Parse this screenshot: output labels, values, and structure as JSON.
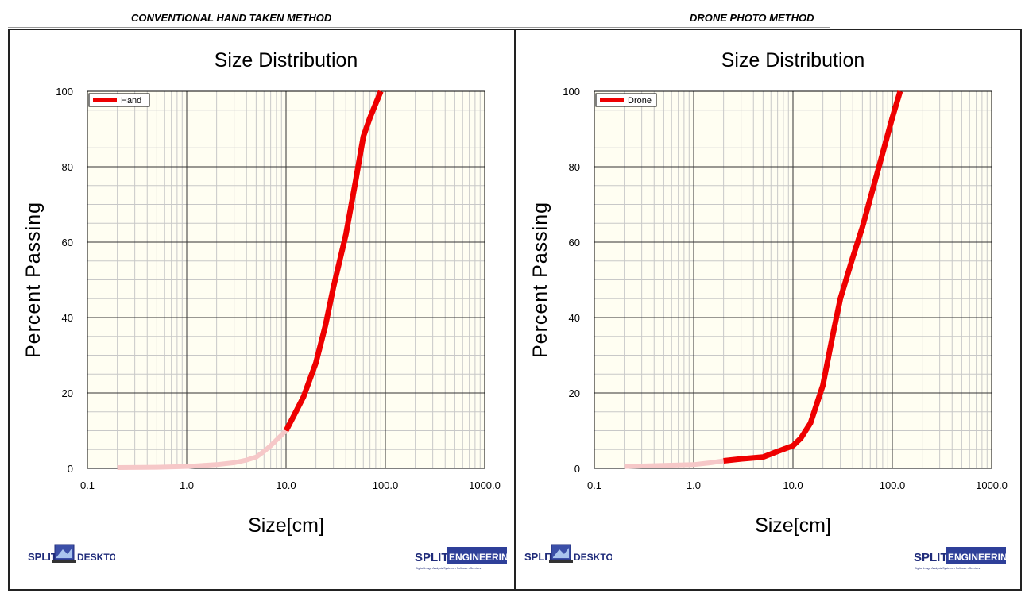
{
  "headers": {
    "left": "CONVENTIONAL HAND TAKEN METHOD",
    "right": "DRONE PHOTO METHOD"
  },
  "logos": {
    "split_prefix": "SPLIT",
    "desktop": "DESKTOP",
    "engineering": "ENGINEERING",
    "tagline": "Digital Image Analysis Systems • Software • Services"
  },
  "colors": {
    "line": "#ee0000",
    "line_faded": "#f6c8c8",
    "plot_bg": "#fffef2",
    "logo_blue": "#1f2b7a"
  },
  "chart_data": [
    {
      "type": "line",
      "title": "Size Distribution",
      "xlabel": "Size[cm]",
      "ylabel": "Percent Passing",
      "x_scale": "log",
      "xlim": [
        0.1,
        1000
      ],
      "ylim": [
        0,
        100
      ],
      "x_ticks": [
        "0.1",
        "1.0",
        "10.0",
        "100.0",
        "1000.0"
      ],
      "y_ticks": [
        "0",
        "20",
        "40",
        "60",
        "80",
        "100"
      ],
      "grid": true,
      "legend": "top-left",
      "series": [
        {
          "name": "Hand",
          "faded_below_x": 10,
          "x": [
            0.2,
            0.5,
            1.0,
            2.0,
            3.0,
            4.0,
            5.0,
            6.0,
            7.0,
            8.0,
            10.0,
            12.0,
            15.0,
            20.0,
            25.0,
            30.0,
            40.0,
            50.0,
            60.0,
            70.0,
            90.0
          ],
          "y": [
            0.2,
            0.3,
            0.5,
            1.0,
            1.5,
            2.2,
            3.0,
            4.5,
            6.0,
            7.5,
            10.0,
            14.0,
            19.0,
            28.0,
            38.0,
            48.0,
            62.0,
            76.0,
            88.0,
            93.0,
            100.0
          ]
        }
      ]
    },
    {
      "type": "line",
      "title": "Size Distribution",
      "xlabel": "Size[cm]",
      "ylabel": "Percent Passing",
      "x_scale": "log",
      "xlim": [
        0.1,
        1000
      ],
      "ylim": [
        0,
        100
      ],
      "x_ticks": [
        "0.1",
        "1.0",
        "10.0",
        "100.0",
        "1000.0"
      ],
      "y_ticks": [
        "0",
        "20",
        "40",
        "60",
        "80",
        "100"
      ],
      "grid": true,
      "legend": "top-left",
      "series": [
        {
          "name": "Drone",
          "faded_below_x": 2,
          "x": [
            0.2,
            0.5,
            1.0,
            1.5,
            2.0,
            3.0,
            5.0,
            7.0,
            10.0,
            12.0,
            15.0,
            20.0,
            25.0,
            30.0,
            40.0,
            50.0,
            70.0,
            100.0,
            120.0
          ],
          "y": [
            0.5,
            0.8,
            1.0,
            1.5,
            2.0,
            2.5,
            3.0,
            4.5,
            6.0,
            8.0,
            12.0,
            22.0,
            35.0,
            45.0,
            56.0,
            64.0,
            78.0,
            93.0,
            100.0
          ]
        }
      ]
    }
  ]
}
